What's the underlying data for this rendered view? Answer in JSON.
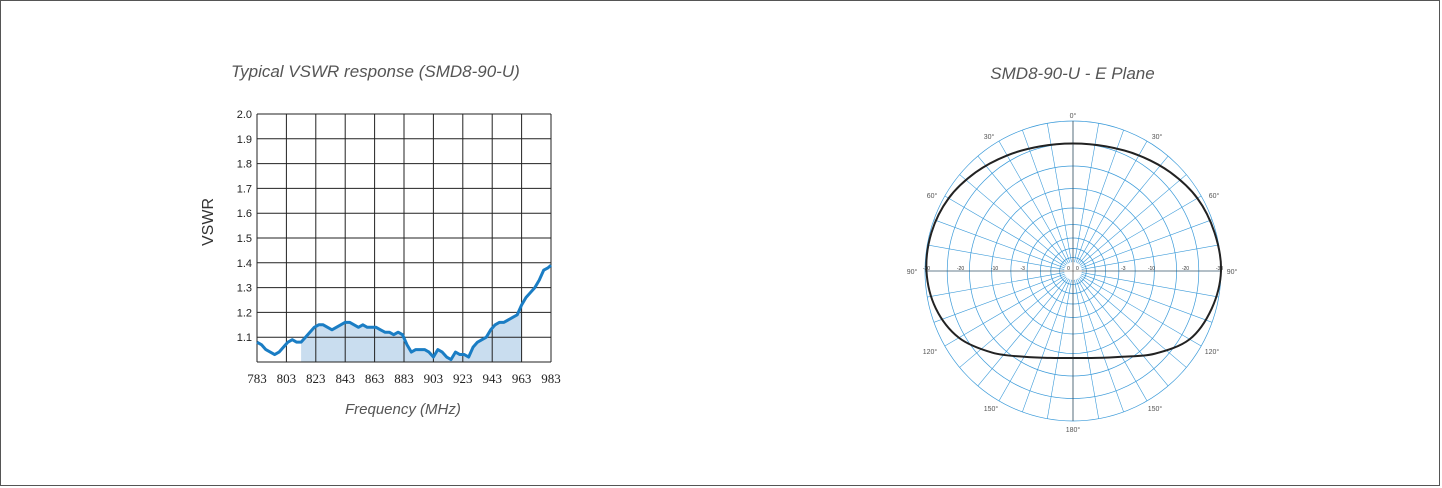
{
  "chart_data": [
    {
      "type": "area",
      "title": "Typical VSWR response (SMD8-90-U)",
      "xlabel": "Frequency (MHz)",
      "ylabel": "VSWR",
      "x_ticks": [
        "783",
        "803",
        "823",
        "843",
        "863",
        "883",
        "903",
        "923",
        "943",
        "963",
        "983"
      ],
      "y_ticks": [
        "1.1",
        "1.2",
        "1.3",
        "1.4",
        "1.5",
        "1.6",
        "1.7",
        "1.8",
        "1.9",
        "2.0"
      ],
      "xlim": [
        783,
        983
      ],
      "ylim": [
        1.0,
        2.0
      ],
      "grid": true,
      "shaded_band": [
        813,
        963
      ],
      "series": [
        {
          "color": "#1a7dc4",
          "fill": "#c9ddef",
          "x": [
            783,
            786,
            789,
            792,
            795,
            798,
            801,
            804,
            807,
            810,
            813,
            816,
            819,
            822,
            825,
            828,
            831,
            834,
            837,
            840,
            843,
            846,
            849,
            852,
            855,
            858,
            861,
            864,
            867,
            870,
            873,
            876,
            879,
            882,
            885,
            888,
            891,
            894,
            897,
            900,
            903,
            906,
            909,
            912,
            915,
            918,
            921,
            924,
            927,
            930,
            933,
            936,
            939,
            942,
            945,
            948,
            951,
            954,
            957,
            960,
            963,
            966,
            969,
            972,
            975,
            978,
            981,
            983
          ],
          "values": [
            1.08,
            1.07,
            1.05,
            1.04,
            1.03,
            1.04,
            1.06,
            1.08,
            1.09,
            1.08,
            1.08,
            1.1,
            1.12,
            1.14,
            1.15,
            1.15,
            1.14,
            1.13,
            1.14,
            1.15,
            1.16,
            1.16,
            1.15,
            1.14,
            1.15,
            1.14,
            1.14,
            1.14,
            1.13,
            1.12,
            1.12,
            1.11,
            1.12,
            1.11,
            1.07,
            1.04,
            1.05,
            1.05,
            1.05,
            1.04,
            1.02,
            1.05,
            1.04,
            1.02,
            1.01,
            1.04,
            1.03,
            1.03,
            1.02,
            1.06,
            1.08,
            1.09,
            1.1,
            1.13,
            1.15,
            1.16,
            1.16,
            1.17,
            1.18,
            1.19,
            1.23,
            1.26,
            1.28,
            1.3,
            1.33,
            1.37,
            1.38,
            1.39
          ]
        }
      ]
    },
    {
      "type": "polar",
      "title": "SMD8-90-U - E Plane",
      "angle_labels": [
        "0°",
        "30°",
        "30°",
        "60°",
        "60°",
        "90°",
        "90°",
        "120°",
        "120°",
        "150°",
        "150°",
        "180°"
      ],
      "ring_values": [
        "-30",
        "-20",
        "-10",
        "-3",
        "0"
      ],
      "grid_color": "#3a9ad9",
      "pattern_color": "#222222",
      "pattern": {
        "angles_deg": [
          0,
          15,
          30,
          45,
          60,
          75,
          90,
          105,
          120,
          135,
          150,
          165,
          180,
          195,
          210,
          225,
          240,
          255,
          270,
          285,
          300,
          315,
          330,
          345
        ],
        "relative_radius": [
          0.85,
          0.86,
          0.89,
          0.93,
          0.97,
          0.99,
          1.0,
          0.97,
          0.91,
          0.78,
          0.66,
          0.6,
          0.58,
          0.6,
          0.66,
          0.77,
          0.89,
          0.96,
          0.99,
          0.99,
          0.97,
          0.93,
          0.89,
          0.86
        ]
      }
    }
  ]
}
